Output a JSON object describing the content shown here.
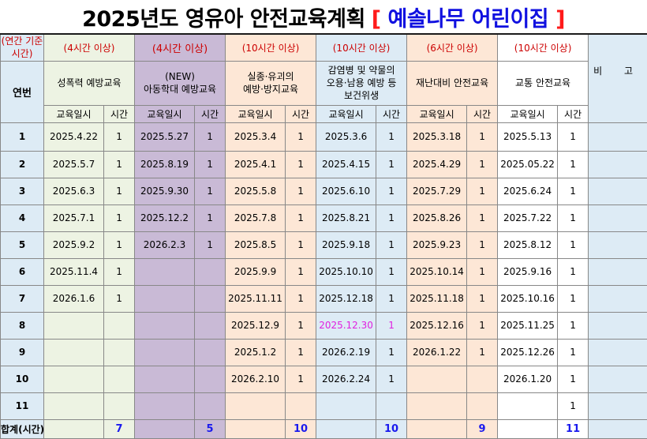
{
  "title": {
    "main": "2025년도 영유아 안전교육계획",
    "bracket_open": "[",
    "school": "예솔나무 어린이집",
    "bracket_close": "]"
  },
  "header": {
    "annual_label": "(연간 기준시간)",
    "row_no_label": "연번",
    "remarks_label": "비 고",
    "date_label": "교육일시",
    "hours_label": "시간",
    "categories": [
      {
        "required": "(4시간 이상)",
        "name": "성폭력 예방교육"
      },
      {
        "required": "(4시간 이상)",
        "name": "(NEW)\n아동학대 예방교육"
      },
      {
        "required": "(10시간 이상)",
        "name": "실종·유괴의\n예방·방지교육"
      },
      {
        "required": "(10시간 이상)",
        "name": "감염병 및 약물의\n오용·남용 예방 등\n보건위생"
      },
      {
        "required": "(6시간 이상)",
        "name": "재난대비 안전교육"
      },
      {
        "required": "(10시간 이상)",
        "name": "교통 안전교육"
      }
    ]
  },
  "rows": [
    {
      "no": "1",
      "cells": [
        [
          "2025.4.22",
          "1"
        ],
        [
          "2025.5.27",
          "1"
        ],
        [
          "2025.3.4",
          "1"
        ],
        [
          "2025.3.6",
          "1"
        ],
        [
          "2025.3.18",
          "1"
        ],
        [
          "2025.5.13",
          "1"
        ]
      ]
    },
    {
      "no": "2",
      "cells": [
        [
          "2025.5.7",
          "1"
        ],
        [
          "2025.8.19",
          "1"
        ],
        [
          "2025.4.1",
          "1"
        ],
        [
          "2025.4.15",
          "1"
        ],
        [
          "2025.4.29",
          "1"
        ],
        [
          "2025.05.22",
          "1"
        ]
      ]
    },
    {
      "no": "3",
      "cells": [
        [
          "2025.6.3",
          "1"
        ],
        [
          "2025.9.30",
          "1"
        ],
        [
          "2025.5.8",
          "1"
        ],
        [
          "2025.6.10",
          "1"
        ],
        [
          "2025.7.29",
          "1"
        ],
        [
          "2025.6.24",
          "1"
        ]
      ]
    },
    {
      "no": "4",
      "cells": [
        [
          "2025.7.1",
          "1"
        ],
        [
          "2025.12.2",
          "1"
        ],
        [
          "2025.7.8",
          "1"
        ],
        [
          "2025.8.21",
          "1"
        ],
        [
          "2025.8.26",
          "1"
        ],
        [
          "2025.7.22",
          "1"
        ]
      ]
    },
    {
      "no": "5",
      "cells": [
        [
          "2025.9.2",
          "1"
        ],
        [
          "2026.2.3",
          "1"
        ],
        [
          "2025.8.5",
          "1"
        ],
        [
          "2025.9.18",
          "1"
        ],
        [
          "2025.9.23",
          "1"
        ],
        [
          "2025.8.12",
          "1"
        ]
      ]
    },
    {
      "no": "6",
      "cells": [
        [
          "2025.11.4",
          "1"
        ],
        [
          "",
          ""
        ],
        [
          "2025.9.9",
          "1"
        ],
        [
          "2025.10.10",
          "1"
        ],
        [
          "2025.10.14",
          "1"
        ],
        [
          "2025.9.16",
          "1"
        ]
      ]
    },
    {
      "no": "7",
      "cells": [
        [
          "2026.1.6",
          "1"
        ],
        [
          "",
          ""
        ],
        [
          "2025.11.11",
          "1"
        ],
        [
          "2025.12.18",
          "1"
        ],
        [
          "2025.11.18",
          "1"
        ],
        [
          "2025.10.16",
          "1"
        ]
      ]
    },
    {
      "no": "8",
      "cells": [
        [
          "",
          ""
        ],
        [
          "",
          ""
        ],
        [
          "2025.12.9",
          "1"
        ],
        [
          "2025.12.30",
          "1"
        ],
        [
          "2025.12.16",
          "1"
        ],
        [
          "2025.11.25",
          "1"
        ]
      ]
    },
    {
      "no": "9",
      "cells": [
        [
          "",
          ""
        ],
        [
          "",
          ""
        ],
        [
          "2025.1.2",
          "1"
        ],
        [
          "2026.2.19",
          "1"
        ],
        [
          "2026.1.22",
          "1"
        ],
        [
          "2025.12.26",
          "1"
        ]
      ]
    },
    {
      "no": "10",
      "cells": [
        [
          "",
          ""
        ],
        [
          "",
          ""
        ],
        [
          "2026.2.10",
          "1"
        ],
        [
          "2026.2.24",
          "1"
        ],
        [
          "",
          ""
        ],
        [
          "2026.1.20",
          "1"
        ]
      ]
    },
    {
      "no": "11",
      "cells": [
        [
          "",
          ""
        ],
        [
          "",
          ""
        ],
        [
          "",
          ""
        ],
        [
          "",
          ""
        ],
        [
          "",
          ""
        ],
        [
          "",
          "1"
        ]
      ]
    }
  ],
  "totals": {
    "label": "합계(시간)",
    "values": [
      "7",
      "5",
      "10",
      "10",
      "9",
      "11"
    ]
  },
  "colors": {
    "title_school": "#1010e0",
    "bracket": "#ff1a1a",
    "required_text": "#cc0000",
    "green": "#edf3e3",
    "lavender": "#c9bad6",
    "peach": "#fde7d6",
    "blue": "#ddebf5",
    "highlight": "#e020e0",
    "total_text": "#1a1aee"
  }
}
